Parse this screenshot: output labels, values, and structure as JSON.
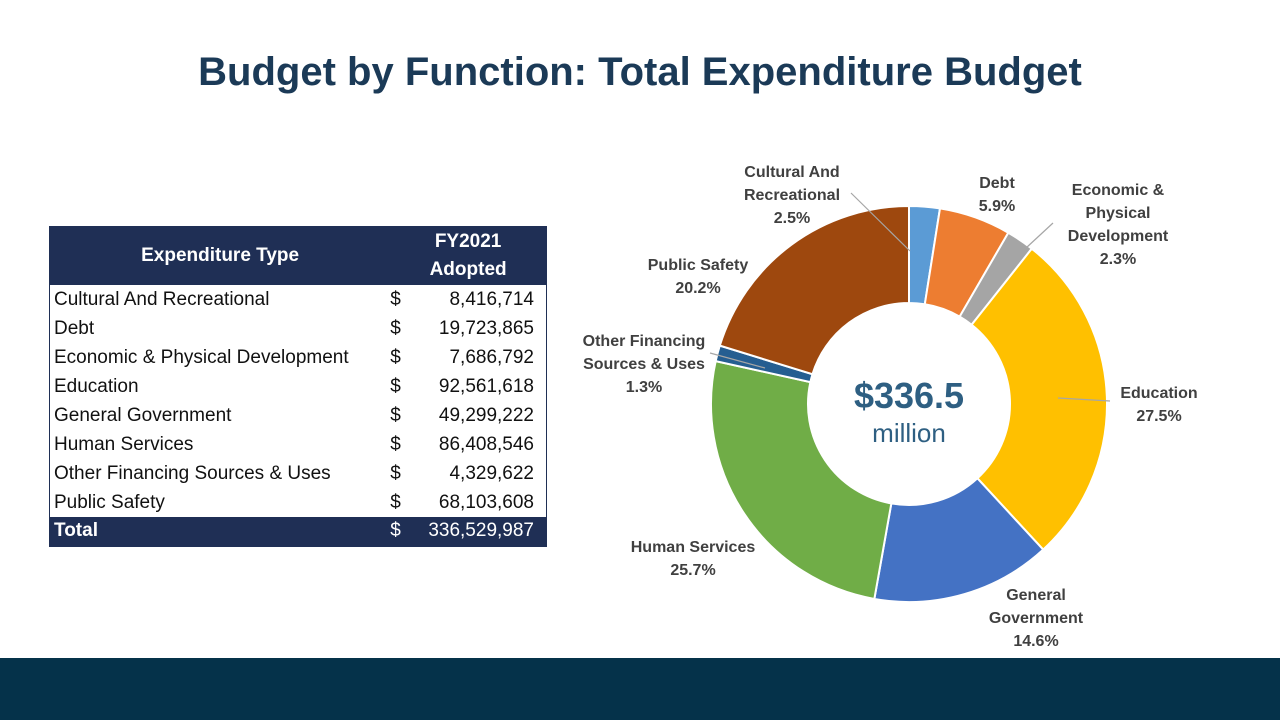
{
  "page": {
    "title": "Budget by Function: Total Expenditure Budget"
  },
  "table": {
    "header_type": "Expenditure Type",
    "header_fy_line1": "FY2021",
    "header_fy_line2": "Adopted",
    "rows": [
      {
        "label": "Cultural And Recreational",
        "currency": "$",
        "amount": "8,416,714"
      },
      {
        "label": "Debt",
        "currency": "$",
        "amount": "19,723,865"
      },
      {
        "label": "Economic & Physical Development",
        "currency": "$",
        "amount": "7,686,792"
      },
      {
        "label": "Education",
        "currency": "$",
        "amount": "92,561,618"
      },
      {
        "label": "General Government",
        "currency": "$",
        "amount": "49,299,222"
      },
      {
        "label": "Human Services",
        "currency": "$",
        "amount": "86,408,546"
      },
      {
        "label": "Other Financing Sources & Uses",
        "currency": "$",
        "amount": "4,329,622"
      },
      {
        "label": "Public Safety",
        "currency": "$",
        "amount": "68,103,608"
      }
    ],
    "total": {
      "label": "Total",
      "currency": "$",
      "amount": "336,529,987"
    }
  },
  "chart_data": {
    "type": "pie",
    "variant": "donut",
    "center_value": "$336.5",
    "center_unit": "million",
    "slices": [
      {
        "name": "Cultural And Recreational",
        "percent_label": "2.5%",
        "value": 8416714,
        "color": "#5b9bd5"
      },
      {
        "name": "Debt",
        "percent_label": "5.9%",
        "value": 19723865,
        "color": "#ed7d31"
      },
      {
        "name": "Economic & Physical Development",
        "percent_label": "2.3%",
        "value": 7686792,
        "color": "#a5a5a5"
      },
      {
        "name": "Education",
        "percent_label": "27.5%",
        "value": 92561618,
        "color": "#ffc000"
      },
      {
        "name": "General Government",
        "percent_label": "14.6%",
        "value": 49299222,
        "color": "#4472c4"
      },
      {
        "name": "Human Services",
        "percent_label": "25.7%",
        "value": 86408546,
        "color": "#70ad47"
      },
      {
        "name": "Other Financing Sources & Uses",
        "percent_label": "1.3%",
        "value": 4329622,
        "color": "#255e91"
      },
      {
        "name": "Public Safety",
        "percent_label": "20.2%",
        "value": 68103608,
        "color": "#9e480e"
      }
    ],
    "labels": [
      {
        "lines": [
          "Cultural And",
          "Recreational"
        ],
        "pct": "2.5%"
      },
      {
        "lines": [
          "Debt"
        ],
        "pct": "5.9%"
      },
      {
        "lines": [
          "Economic &",
          "Physical",
          "Development"
        ],
        "pct": "2.3%"
      },
      {
        "lines": [
          "Education"
        ],
        "pct": "27.5%"
      },
      {
        "lines": [
          "General",
          "Government"
        ],
        "pct": "14.6%"
      },
      {
        "lines": [
          "Human Services"
        ],
        "pct": "25.7%"
      },
      {
        "lines": [
          "Other Financing",
          "Sources & Uses"
        ],
        "pct": "1.3%"
      },
      {
        "lines": [
          "Public Safety"
        ],
        "pct": "20.2%"
      }
    ]
  }
}
